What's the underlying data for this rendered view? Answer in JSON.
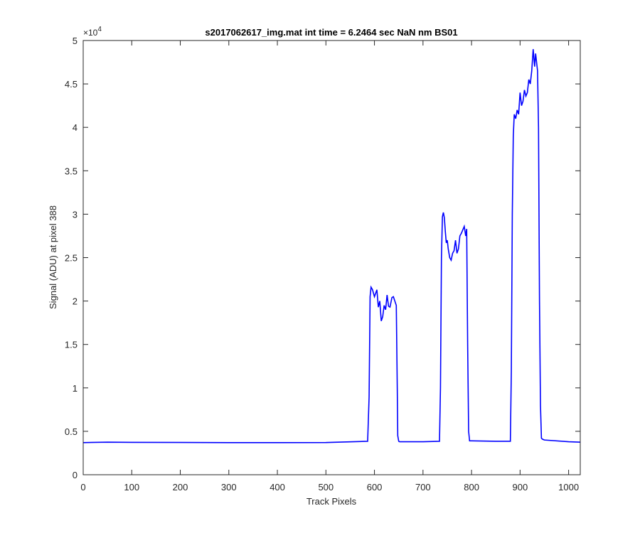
{
  "chart_data": {
    "type": "line",
    "title": "s2017062617_img.mat int time = 6.2464 sec  NaN nm BS01",
    "xlabel": "Track Pixels",
    "ylabel": "Signal (ADU) at pixel 388",
    "xlim": [
      0,
      1024
    ],
    "ylim": [
      0,
      50000
    ],
    "x_ticks": [
      0,
      100,
      200,
      300,
      400,
      500,
      600,
      700,
      800,
      900,
      1000
    ],
    "x_tick_labels": [
      "0",
      "100",
      "200",
      "300",
      "400",
      "500",
      "600",
      "700",
      "800",
      "900",
      "1000"
    ],
    "y_ticks": [
      0,
      5000,
      10000,
      15000,
      20000,
      25000,
      30000,
      35000,
      40000,
      45000,
      50000
    ],
    "y_tick_labels": [
      "0",
      "0.5",
      "1",
      "1.5",
      "2",
      "2.5",
      "3",
      "3.5",
      "4",
      "4.5",
      "5"
    ],
    "y_exponent_label": "×10",
    "y_exponent_power": "4",
    "grid": false,
    "line_color": "#0000ff",
    "series": [
      {
        "x": [
          0,
          50,
          100,
          200,
          300,
          400,
          500,
          586,
          589,
          591,
          593,
          596,
          600,
          605,
          608,
          611,
          614,
          617,
          620,
          623,
          626,
          629,
          632,
          636,
          639,
          642,
          645,
          647,
          648,
          650,
          652,
          655,
          700,
          734,
          736,
          738,
          740,
          742,
          744,
          746,
          748,
          750,
          752,
          755,
          758,
          761,
          764,
          767,
          770,
          773,
          776,
          779,
          782,
          785,
          788,
          790,
          792,
          794,
          796,
          800,
          850,
          880,
          882,
          884,
          886,
          888,
          891,
          894,
          897,
          900,
          903,
          906,
          909,
          912,
          915,
          918,
          921,
          924,
          927,
          930,
          932,
          934,
          936,
          938,
          940,
          942,
          944,
          946,
          950,
          1000,
          1024
        ],
        "y": [
          3700,
          3750,
          3730,
          3720,
          3700,
          3700,
          3710,
          3850,
          9000,
          20500,
          21600,
          21300,
          20500,
          21300,
          19300,
          20000,
          17700,
          18200,
          19500,
          19000,
          20700,
          19400,
          19300,
          20400,
          20500,
          20000,
          19500,
          10000,
          4500,
          3850,
          3800,
          3800,
          3800,
          3850,
          10000,
          25000,
          29700,
          30200,
          29600,
          28000,
          26700,
          27000,
          26000,
          25000,
          24700,
          25500,
          25800,
          27000,
          25500,
          26000,
          27500,
          27800,
          28200,
          28600,
          27500,
          28300,
          15000,
          5000,
          3900,
          3900,
          3850,
          3850,
          12000,
          30000,
          39000,
          41500,
          41000,
          42000,
          41500,
          44000,
          42500,
          43000,
          44300,
          43600,
          44000,
          45500,
          45000,
          46500,
          49000,
          47000,
          48500,
          47500,
          46500,
          40000,
          20000,
          8000,
          4200,
          4100,
          4000,
          3800,
          3750
        ]
      }
    ]
  }
}
